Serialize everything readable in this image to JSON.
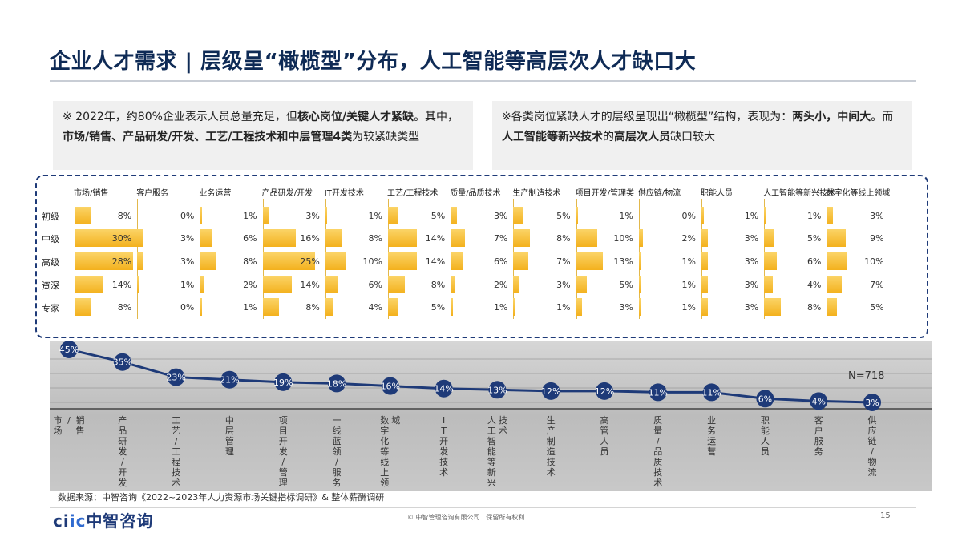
{
  "header": {
    "title": "企业人才需求 | 层级呈“橄榄型”分布，人工智能等高层次人才缺口大"
  },
  "notes": {
    "left": {
      "t1": "※ 2022年，约80%企业表示人员总量充足，但",
      "b1": "核心岗位/关键人才紧缺",
      "t2": "。其中，",
      "b2": "市场/销售、产品研发/开发、工艺/工程技术和中层管理4类",
      "t3": "为较紧缺类型"
    },
    "right": {
      "t1": "※各类岗位紧缺人才的层级呈现出“橄榄型”结构，表现为：",
      "b1": "两头小，中间大",
      "t2": "。而",
      "b2": "人工智能等新兴技术",
      "t3": "的",
      "b3": "高层次人员",
      "t4": "缺口较大"
    }
  },
  "chart_data": [
    {
      "type": "bar",
      "subtype": "small-multiples-horizontal",
      "categories": [
        "市场/销售",
        "客户服务",
        "业务运营",
        "产品研发/开发",
        "IT开发技术",
        "工艺/工程技术",
        "质量/品质技术",
        "生产制造技术",
        "项目开发/管理类",
        "供应链/物流",
        "职能人员",
        "人工智能等新兴技术",
        "数字化等线上领域"
      ],
      "levels": [
        "初级",
        "中级",
        "高级",
        "资深",
        "专家"
      ],
      "values": [
        [
          8,
          30,
          28,
          14,
          8
        ],
        [
          0,
          3,
          3,
          1,
          0
        ],
        [
          1,
          6,
          8,
          2,
          1
        ],
        [
          3,
          16,
          25,
          14,
          8
        ],
        [
          1,
          8,
          10,
          6,
          4
        ],
        [
          5,
          14,
          14,
          8,
          5
        ],
        [
          3,
          7,
          6,
          2,
          1
        ],
        [
          5,
          8,
          7,
          3,
          1
        ],
        [
          1,
          10,
          13,
          5,
          3
        ],
        [
          0,
          2,
          1,
          1,
          1
        ],
        [
          1,
          3,
          3,
          3,
          3
        ],
        [
          1,
          5,
          6,
          4,
          8
        ],
        [
          3,
          9,
          10,
          7,
          5
        ]
      ],
      "value_suffix": "%",
      "color": "#f5b82a"
    },
    {
      "type": "line",
      "categories": [
        "市场/销售",
        "产品研发/开发",
        "工艺/工程技术",
        "中层管理",
        "项目开发/管理",
        "一线蓝领/服务",
        "数字化等线上领域",
        "IT开发技术",
        "人工智能等新兴技术",
        "生产制造技术",
        "高管人员",
        "质量/品质技术",
        "业务运营",
        "职能人员",
        "客户服务",
        "供应链/物流"
      ],
      "category_display": [
        "市场\n/\n销售",
        "产品研发/开发",
        "工艺/工程技术",
        "中层管理",
        "项目开发/管理",
        "一线蓝领/服务",
        "数字化等线上领\n域",
        "IT开发技术",
        "人工智能等新兴\n技术",
        "生产制造技术",
        "高管人员",
        "质量/品质技术",
        "业务运营",
        "职能人员",
        "客户服务",
        "供应链/物流"
      ],
      "values": [
        45,
        35,
        23,
        21,
        19,
        18,
        16,
        14,
        13,
        12,
        12,
        11,
        11,
        6,
        4,
        3
      ],
      "value_suffix": "%",
      "annotation": "N=718",
      "line_color": "#1e3a78",
      "marker_color": "#1e3a78"
    }
  ],
  "footer": {
    "source": "数据来源：中智咨询《2022~2023年人力资源市场关键指标调研》& 整体薪酬调研",
    "logo_a": "ci",
    "logo_b": "ic",
    "logo_cn": "中智咨询",
    "copyright": "© 中智管理咨询有限公司 | 保留所有权利",
    "page": "15"
  }
}
